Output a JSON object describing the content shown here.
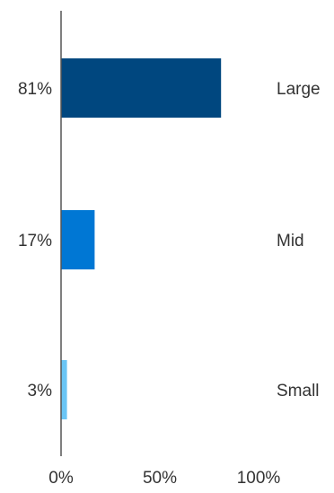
{
  "chart_data": {
    "type": "bar",
    "orientation": "horizontal",
    "categories": [
      "Large",
      "Mid",
      "Small"
    ],
    "values": [
      81,
      17,
      3
    ],
    "value_labels": [
      "81%",
      "17%",
      "3%"
    ],
    "colors": [
      "#00477f",
      "#0077d4",
      "#6ac5f5"
    ],
    "xticks": [
      "0%",
      "50%",
      "100%"
    ],
    "xlim": [
      0,
      100
    ],
    "title": "",
    "xlabel": "",
    "ylabel": "",
    "grid": false,
    "legend": "none"
  }
}
